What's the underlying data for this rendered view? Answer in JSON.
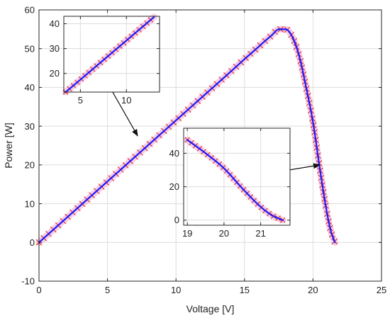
{
  "chart_data": {
    "type": "line",
    "xlabel": "Voltage [V]",
    "ylabel": "Power [W]",
    "xlim": [
      0,
      25
    ],
    "ylim": [
      -10,
      60
    ],
    "xticks": [
      0,
      5,
      10,
      15,
      20,
      25
    ],
    "yticks": [
      -10,
      0,
      10,
      20,
      30,
      40,
      50,
      60
    ],
    "grid": true,
    "colors": {
      "line": "#1a1aff",
      "marker": "#d62020",
      "halo": "#f4a6c8",
      "arrow": "#111111",
      "grid": "#dcdcdc",
      "axis": "#262626"
    },
    "series": [
      {
        "x": [
          0,
          2,
          4,
          6,
          8,
          10,
          12,
          14,
          15,
          16,
          16.5,
          17,
          17.5,
          18,
          18.5,
          19,
          19.5,
          20,
          20.5,
          21,
          21.3,
          21.6
        ],
        "y": [
          0,
          6.3,
          12.6,
          18.9,
          25.2,
          31.5,
          37.8,
          44.1,
          47.3,
          50.4,
          52.0,
          53.5,
          55.0,
          55.0,
          53.0,
          48.0,
          40.0,
          31.0,
          19.0,
          8.0,
          3.0,
          0
        ]
      }
    ],
    "insets": [
      {
        "location": "upper-left",
        "xlim": [
          3.2,
          13.6
        ],
        "ylim": [
          12.5,
          43
        ],
        "xticks": [
          5,
          10
        ],
        "yticks": [
          20,
          30,
          40
        ],
        "x": [
          3.4,
          5,
          7,
          9,
          11,
          13
        ],
        "y": [
          12.5,
          17.5,
          23.8,
          30.1,
          36.4,
          42.7
        ],
        "arrow_target": {
          "x": 7.2,
          "y": 27.5
        }
      },
      {
        "location": "center-right",
        "xlim": [
          18.9,
          21.8
        ],
        "ylim": [
          -3,
          55
        ],
        "xticks": [
          19,
          20,
          21
        ],
        "yticks": [
          0,
          20,
          40
        ],
        "x": [
          19.0,
          19.5,
          20.0,
          20.5,
          21.0,
          21.3,
          21.6
        ],
        "y": [
          48.0,
          40.0,
          31.0,
          19.0,
          8.0,
          3.0,
          0
        ],
        "arrow_target": {
          "x": 20.5,
          "y": 20
        }
      }
    ]
  }
}
